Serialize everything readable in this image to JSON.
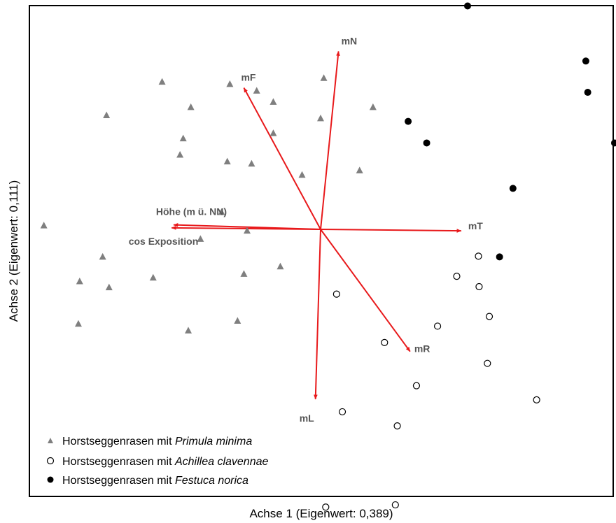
{
  "chart_data": {
    "type": "scatter",
    "xlabel": "Achse 1 (Eigenwert: 0,389)",
    "ylabel": "Achse 2 (Eigenwert: 0,111)",
    "xlim": [
      -4.6,
      4.6
    ],
    "ylim": [
      -4.1,
      3.4
    ],
    "grid": false,
    "legend_position": "bottom-left",
    "colors": {
      "arrow": "#e8191b",
      "triangle": "#7f7f7f",
      "filled": "#000000",
      "open": "#ffffff",
      "vector_label": "#555555"
    },
    "series": [
      {
        "name": "Horstseggenrasen mit Primula minima",
        "name_plain": "Horstseggenrasen mit ",
        "name_italic": "Primula minima",
        "marker": "triangle",
        "points": [
          [
            -4.33,
            0.05
          ],
          [
            -3.35,
            1.53
          ],
          [
            -2.48,
            1.98
          ],
          [
            -2.03,
            1.64
          ],
          [
            -2.15,
            1.22
          ],
          [
            -2.2,
            1.0
          ],
          [
            -1.42,
            1.95
          ],
          [
            -1.0,
            1.86
          ],
          [
            -0.74,
            1.71
          ],
          [
            -0.74,
            1.29
          ],
          [
            -1.46,
            0.91
          ],
          [
            -1.08,
            0.88
          ],
          [
            -0.29,
            0.73
          ],
          [
            0.05,
            2.03
          ],
          [
            0.0,
            1.49
          ],
          [
            0.82,
            1.64
          ],
          [
            0.61,
            0.79
          ],
          [
            -1.55,
            0.23
          ],
          [
            -1.15,
            -0.02
          ],
          [
            -1.88,
            -0.13
          ],
          [
            -3.41,
            -0.37
          ],
          [
            -3.77,
            -0.7
          ],
          [
            -3.31,
            -0.78
          ],
          [
            -2.62,
            -0.65
          ],
          [
            -1.2,
            -0.6
          ],
          [
            -0.63,
            -0.5
          ],
          [
            -1.3,
            -1.23
          ],
          [
            -2.07,
            -1.36
          ],
          [
            -3.79,
            -1.27
          ]
        ]
      },
      {
        "name": "Horstseggenrasen mit Achillea clavennae",
        "name_plain": "Horstseggenrasen mit ",
        "name_italic": "Achillea clavennae",
        "marker": "open",
        "points": [
          [
            2.47,
            -0.36
          ],
          [
            2.13,
            -0.63
          ],
          [
            2.48,
            -0.77
          ],
          [
            2.64,
            -1.17
          ],
          [
            1.83,
            -1.3
          ],
          [
            0.25,
            -0.87
          ],
          [
            1.0,
            -1.52
          ],
          [
            2.61,
            -1.8
          ],
          [
            1.5,
            -2.1
          ],
          [
            3.38,
            -2.29
          ],
          [
            0.34,
            -2.45
          ],
          [
            1.2,
            -2.64
          ],
          [
            0.08,
            -3.73
          ],
          [
            1.17,
            -3.7
          ]
        ]
      },
      {
        "name": "Horstseggenrasen mit Festuca norica",
        "name_plain": "Horstseggenrasen mit ",
        "name_italic": "Festuca norica",
        "marker": "filled",
        "points": [
          [
            2.3,
            3.0
          ],
          [
            4.15,
            2.26
          ],
          [
            4.18,
            1.84
          ],
          [
            4.6,
            1.16
          ],
          [
            1.37,
            1.45
          ],
          [
            1.66,
            1.16
          ],
          [
            3.01,
            0.55
          ],
          [
            2.8,
            -0.37
          ]
        ]
      }
    ],
    "vectors": [
      {
        "label": "mN",
        "x": 0.28,
        "y": 2.39
      },
      {
        "label": "mF",
        "x": -1.2,
        "y": 1.9
      },
      {
        "label": "Höhe (m ü. NN)",
        "x": -2.3,
        "y": 0.06
      },
      {
        "label": "cos Exposition",
        "x": -2.33,
        "y": 0.02
      },
      {
        "label": "mT",
        "x": 2.2,
        "y": -0.02
      },
      {
        "label": "mR",
        "x": 1.4,
        "y": -1.64
      },
      {
        "label": "mL",
        "x": -0.08,
        "y": -2.28
      }
    ]
  }
}
